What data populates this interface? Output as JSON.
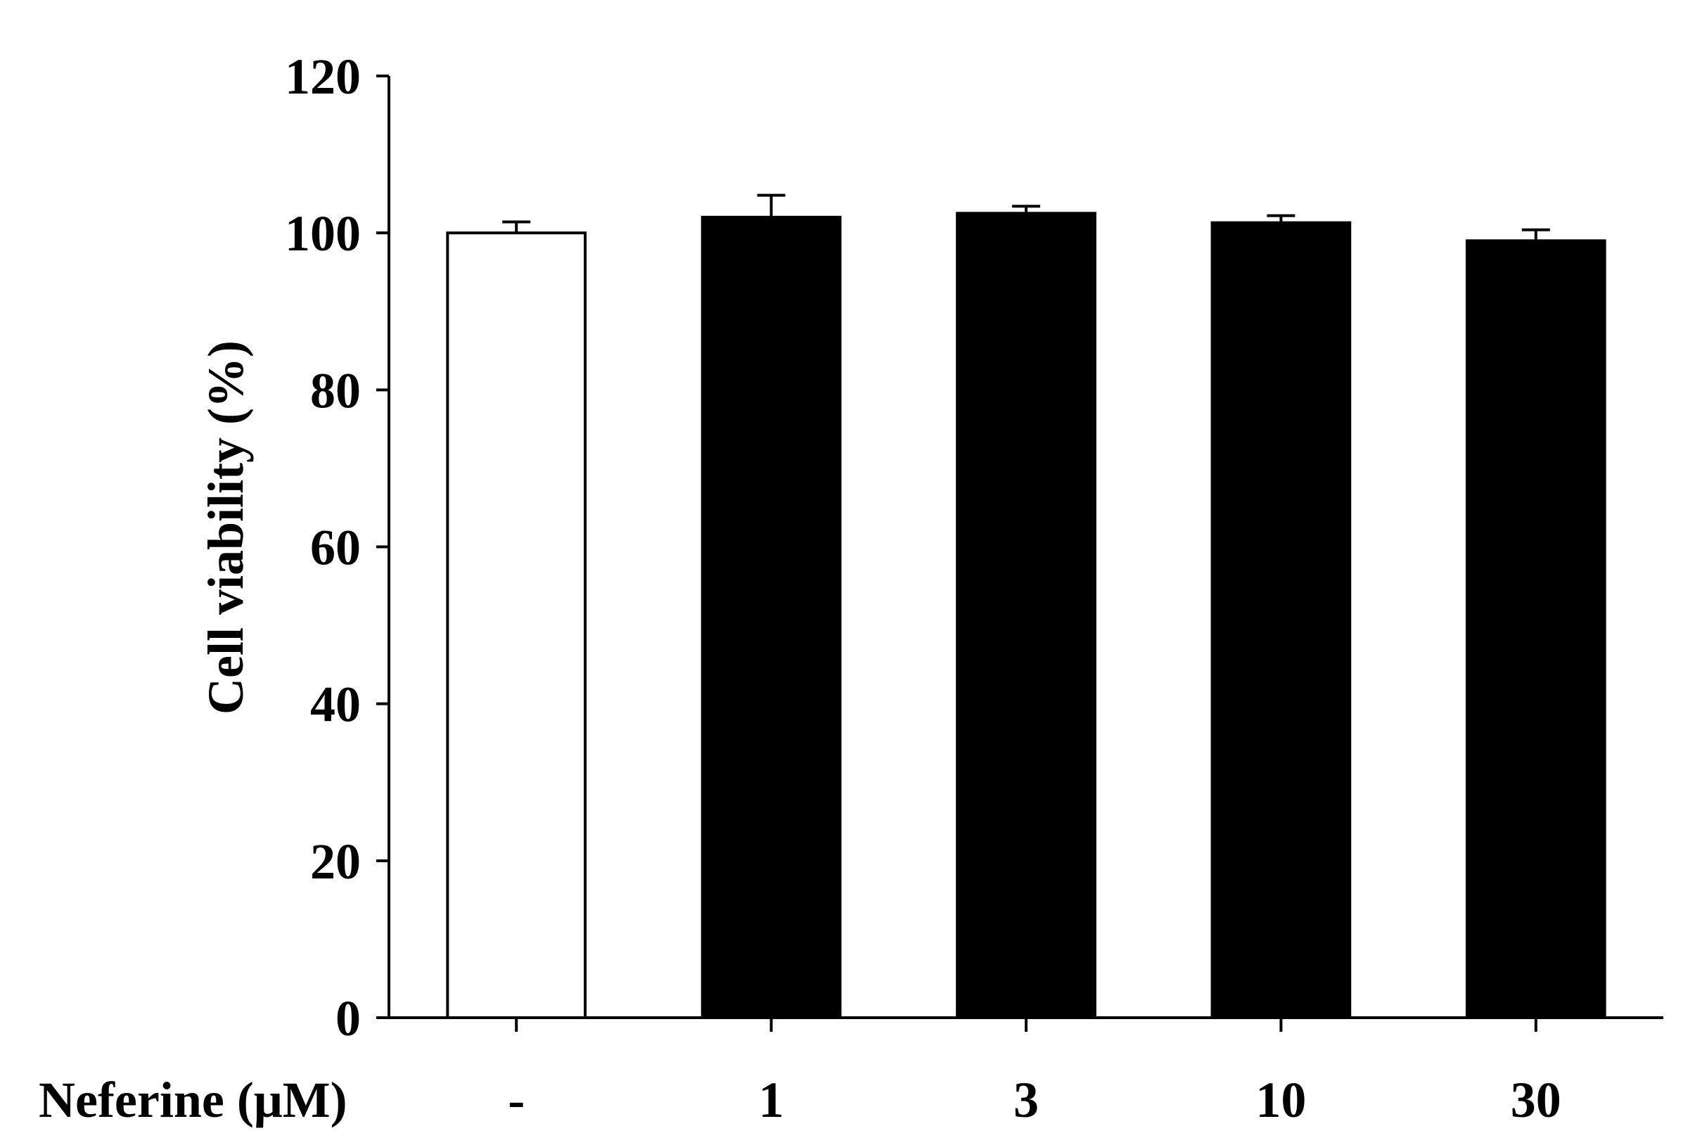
{
  "chart_data": {
    "type": "bar",
    "title": "",
    "xlabel": "Neferine (μM)",
    "ylabel": "Cell viability (%)",
    "categories": [
      "-",
      "1",
      "3",
      "10",
      "30"
    ],
    "values": [
      100,
      102,
      102.5,
      101.3,
      99
    ],
    "errors": [
      1.4,
      2.8,
      0.9,
      0.9,
      1.4
    ],
    "ylim": [
      0,
      120
    ],
    "yticks": [
      "0",
      "20",
      "40",
      "60",
      "80",
      "100",
      "120"
    ],
    "bar_colors": [
      "#ffffff",
      "#000000",
      "#000000",
      "#000000",
      "#000000"
    ],
    "grid": false,
    "legend": "none"
  }
}
